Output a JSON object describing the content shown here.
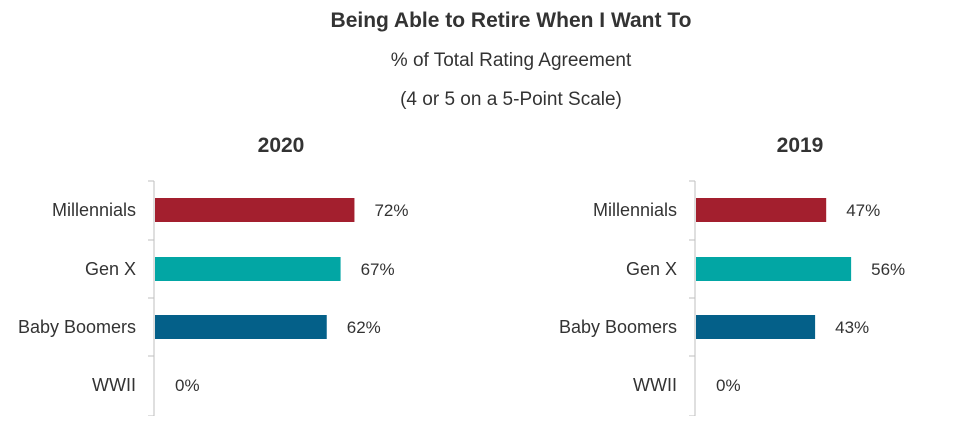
{
  "header": {
    "title": "Being Able to Retire When I Want To",
    "subtitle_line1": "% of Total Rating Agreement",
    "subtitle_line2": "(4 or 5 on a 5-Point Scale)"
  },
  "chart_data": [
    {
      "type": "bar",
      "orientation": "horizontal",
      "title": "2020",
      "categories": [
        "Millennials",
        "Gen X",
        "Baby Boomers",
        "WWII"
      ],
      "values": [
        72,
        67,
        62,
        0
      ],
      "value_labels": [
        "72%",
        "67%",
        "62%",
        "0%"
      ],
      "bar_colors": [
        "#a31f2e",
        "#02a6a4",
        "#046089",
        "#999999"
      ],
      "xlim": [
        0,
        100
      ],
      "grid": false,
      "legend": "none"
    },
    {
      "type": "bar",
      "orientation": "horizontal",
      "title": "2019",
      "categories": [
        "Millennials",
        "Gen X",
        "Baby Boomers",
        "WWII"
      ],
      "values": [
        47,
        56,
        43,
        0
      ],
      "value_labels": [
        "47%",
        "56%",
        "43%",
        "0%"
      ],
      "bar_colors": [
        "#a31f2e",
        "#02a6a4",
        "#046089",
        "#999999"
      ],
      "xlim": [
        0,
        100
      ],
      "grid": false,
      "legend": "none"
    }
  ],
  "colors": {
    "text": "#333333",
    "axis": "#bfbfbf"
  }
}
